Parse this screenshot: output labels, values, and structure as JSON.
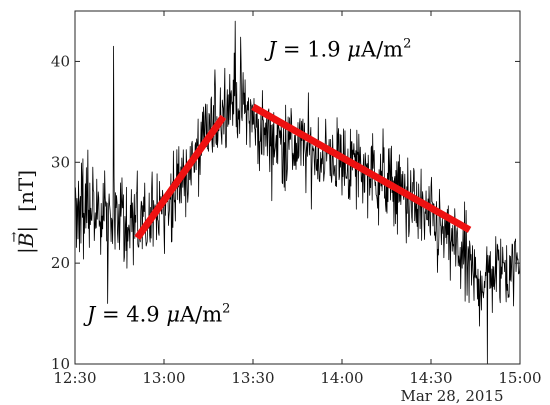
{
  "chart_data": {
    "type": "line",
    "ylabel": "|B⃗|   [nT]",
    "date_label": "Mar 28, 2015",
    "x_range": [
      "12:30",
      "15:00"
    ],
    "x_ticks": [
      "12:30",
      "13:00",
      "13:30",
      "14:00",
      "14:30",
      "15:00"
    ],
    "ylim": [
      10,
      45
    ],
    "y_ticks": [
      10,
      20,
      30,
      40
    ],
    "grid": false,
    "series": [
      {
        "name": "",
        "color": "#000000",
        "description_points": [
          [
            "12:30",
            25
          ],
          [
            "12:36",
            26
          ],
          [
            "12:42",
            25
          ],
          [
            "12:48",
            23.5
          ],
          [
            "12:54",
            24
          ],
          [
            "13:00",
            26
          ],
          [
            "13:06",
            28
          ],
          [
            "13:12",
            31
          ],
          [
            "13:17",
            34
          ],
          [
            "13:22",
            36.5
          ],
          [
            "13:26",
            36
          ],
          [
            "13:32",
            33
          ],
          [
            "13:40",
            32
          ],
          [
            "13:50",
            31
          ],
          [
            "14:00",
            30
          ],
          [
            "14:10",
            29
          ],
          [
            "14:20",
            27
          ],
          [
            "14:30",
            24
          ],
          [
            "14:40",
            21
          ],
          [
            "14:45",
            18
          ],
          [
            "14:50",
            19
          ],
          [
            "15:00",
            20
          ]
        ],
        "extremes": [
          [
            "12:43",
            41.5
          ],
          [
            "13:24",
            44
          ],
          [
            "12:41",
            16
          ],
          [
            "14:49",
            10
          ]
        ]
      }
    ],
    "fit_lines": [
      {
        "color": "#ee1111",
        "start": [
          "12:51",
          22.5
        ],
        "end": [
          "13:20",
          34.5
        ]
      },
      {
        "color": "#ee1111",
        "start": [
          "13:30",
          35.5
        ],
        "end": [
          "14:43",
          23.3
        ]
      }
    ],
    "annotations": [
      {
        "J": "J",
        "eq": " = 1.9 ",
        "mu": "μ",
        "unit": "A/m",
        "sup": "2",
        "anchor": [
          "13:35",
          41.3
        ]
      },
      {
        "J": "J",
        "eq": " = 4.9 ",
        "mu": "μ",
        "unit": "A/m",
        "sup": "2",
        "anchor": [
          "12:34",
          15.0
        ]
      }
    ]
  }
}
